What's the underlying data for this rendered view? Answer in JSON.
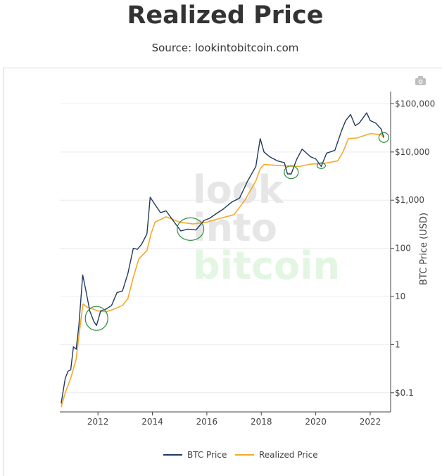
{
  "header": {
    "title": "Realized Price",
    "source": "Source: lookintobitcoin.com"
  },
  "watermark": {
    "line1": "look",
    "line2": "into",
    "line3": "bitcoin"
  },
  "toolbar": {
    "camera_icon": "camera-icon"
  },
  "chart_data": {
    "type": "line",
    "title": "Realized Price",
    "ylabel": "BTC Price (USD)",
    "xlabel": "",
    "yscale": "log",
    "xlim": [
      2010.6,
      2022.75
    ],
    "ylim": [
      0.04,
      180000
    ],
    "x_ticks": [
      {
        "value": 2012,
        "label": "2012"
      },
      {
        "value": 2014,
        "label": "2014"
      },
      {
        "value": 2016,
        "label": "2016"
      },
      {
        "value": 2018,
        "label": "2018"
      },
      {
        "value": 2020,
        "label": "2020"
      },
      {
        "value": 2022,
        "label": "2022"
      }
    ],
    "y_ticks": [
      {
        "value": 100000,
        "label": "$100,000"
      },
      {
        "value": 10000,
        "label": "$10,000"
      },
      {
        "value": 1000,
        "label": "$1,000"
      },
      {
        "value": 100,
        "label": "100"
      },
      {
        "value": 10,
        "label": "10"
      },
      {
        "value": 1,
        "label": "1"
      },
      {
        "value": 0.1,
        "label": "$0.1"
      }
    ],
    "grid": true,
    "legend_position": "bottom",
    "series": [
      {
        "name": "BTC Price",
        "color": "#1f3a5f",
        "x": [
          2010.65,
          2010.8,
          2010.9,
          2011.0,
          2011.1,
          2011.2,
          2011.3,
          2011.44,
          2011.55,
          2011.7,
          2011.85,
          2011.95,
          2012.1,
          2012.3,
          2012.5,
          2012.7,
          2012.9,
          2013.1,
          2013.3,
          2013.45,
          2013.6,
          2013.8,
          2013.92,
          2014.1,
          2014.3,
          2014.5,
          2014.8,
          2015.04,
          2015.3,
          2015.6,
          2015.9,
          2016.1,
          2016.4,
          2016.6,
          2016.9,
          2017.2,
          2017.5,
          2017.8,
          2017.96,
          2018.1,
          2018.3,
          2018.6,
          2018.85,
          2018.96,
          2019.1,
          2019.3,
          2019.5,
          2019.8,
          2020.0,
          2020.2,
          2020.4,
          2020.7,
          2020.95,
          2021.1,
          2021.28,
          2021.45,
          2021.6,
          2021.87,
          2022.0,
          2022.2,
          2022.4,
          2022.5
        ],
        "values": [
          0.06,
          0.2,
          0.28,
          0.3,
          0.9,
          0.8,
          2.5,
          28,
          14,
          5,
          3,
          2.5,
          5,
          5.5,
          6.5,
          12,
          13,
          30,
          100,
          95,
          120,
          200,
          1150,
          800,
          550,
          600,
          350,
          230,
          250,
          240,
          380,
          420,
          550,
          650,
          900,
          1100,
          2500,
          5000,
          19000,
          10000,
          8000,
          6500,
          6000,
          3500,
          3500,
          7000,
          11500,
          8000,
          7200,
          5000,
          9500,
          10800,
          28000,
          45000,
          60000,
          35000,
          40000,
          65000,
          45000,
          40000,
          30000,
          20000
        ]
      },
      {
        "name": "Realized Price",
        "color": "#f7a928",
        "x": [
          2010.65,
          2010.8,
          2011.0,
          2011.2,
          2011.3,
          2011.45,
          2011.6,
          2011.8,
          2012.0,
          2012.3,
          2012.6,
          2012.9,
          2013.1,
          2013.3,
          2013.5,
          2013.8,
          2013.95,
          2014.1,
          2014.5,
          2015.0,
          2015.5,
          2016.0,
          2016.5,
          2017.0,
          2017.4,
          2017.8,
          2017.96,
          2018.1,
          2018.5,
          2019.0,
          2019.4,
          2019.8,
          2020.3,
          2020.8,
          2021.0,
          2021.2,
          2021.5,
          2022.0,
          2022.4,
          2022.5
        ],
        "values": [
          0.05,
          0.1,
          0.2,
          0.5,
          1.5,
          7,
          6,
          5.5,
          5,
          4.8,
          5.5,
          6.5,
          9,
          25,
          60,
          90,
          200,
          350,
          450,
          350,
          320,
          350,
          420,
          500,
          1000,
          2500,
          4500,
          5500,
          5300,
          5100,
          5000,
          5600,
          5800,
          6500,
          10000,
          19000,
          19500,
          24000,
          23000,
          20000
        ]
      }
    ],
    "annotations": [
      {
        "name": "circle-2012",
        "x": 2011.95,
        "y": 3.5
      },
      {
        "name": "circle-2015",
        "x": 2015.4,
        "y": 250
      },
      {
        "name": "circle-2019",
        "x": 2019.1,
        "y": 3800
      },
      {
        "name": "circle-2020",
        "x": 2020.2,
        "y": 5200
      },
      {
        "name": "circle-2022",
        "x": 2022.5,
        "y": 20000
      }
    ]
  }
}
